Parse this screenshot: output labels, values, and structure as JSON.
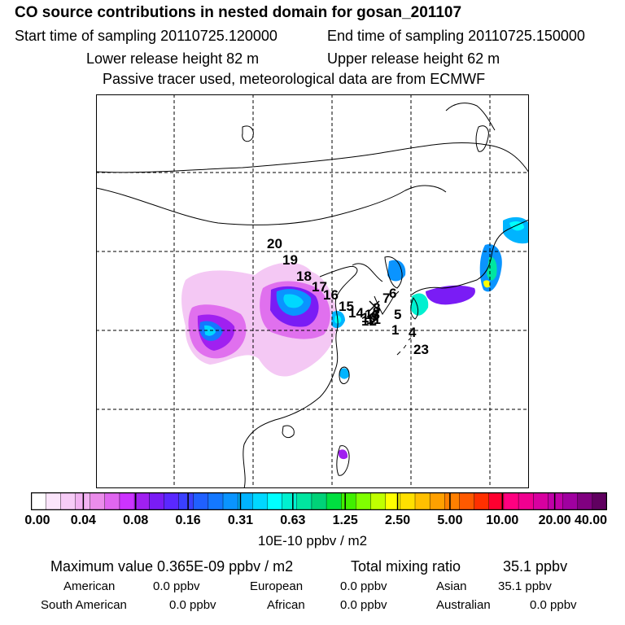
{
  "header": {
    "title": "CO  source contributions in nested domain for gosan_201107",
    "start_time": "Start time of sampling 20110725.120000",
    "end_time": "End time of sampling 20110725.150000",
    "lower_height": "Lower release height   82 m",
    "upper_height": "Upper release height   62 m",
    "tracer_note": "Passive tracer used, meteorological data are from ECMWF"
  },
  "map": {
    "trajectory_labels": [
      "1",
      "23",
      "4",
      "5",
      "6",
      "7",
      "8",
      "9",
      "10",
      "11",
      "12",
      "13",
      "14",
      "15",
      "16",
      "17",
      "18",
      "19",
      "20"
    ]
  },
  "colorbar": {
    "tick_labels": [
      "0.00",
      "0.04",
      "0.08",
      "0.16",
      "0.31",
      "0.63",
      "1.25",
      "2.50",
      "5.00",
      "10.00",
      "20.00",
      "40.00"
    ],
    "units": "10E-10 ppbv / m2",
    "colors": [
      "#ffffff",
      "#fbe5fb",
      "#f7ccf7",
      "#f2b2f2",
      "#eb8ceb",
      "#e066f0",
      "#cc33ff",
      "#a020f0",
      "#7a1cf5",
      "#5a28ff",
      "#3a40ff",
      "#2060ff",
      "#1478ff",
      "#0a94ff",
      "#00b4ff",
      "#00d8ff",
      "#00ffff",
      "#00f0d0",
      "#00e6a0",
      "#00d278",
      "#00e040",
      "#40f000",
      "#80ff00",
      "#c0ff00",
      "#ffff00",
      "#ffe000",
      "#ffc000",
      "#ffa000",
      "#ff8000",
      "#ff5a00",
      "#ff3000",
      "#ff0030",
      "#ff0080",
      "#f00090",
      "#d800a0",
      "#c000a8",
      "#a000a0",
      "#800080",
      "#600060"
    ]
  },
  "summary": {
    "max_label": "Maximum value  0.365E-09 ppbv / m2",
    "total_label": "Total mixing ratio",
    "total_value": "35.1 ppbv",
    "regions": [
      {
        "name": "American",
        "value": "0.0 ppbv"
      },
      {
        "name": "European",
        "value": "0.0 ppbv"
      },
      {
        "name": "Asian",
        "value": "35.1 ppbv"
      },
      {
        "name": "South American",
        "value": "0.0 ppbv"
      },
      {
        "name": "African",
        "value": "0.0 ppbv"
      },
      {
        "name": "Australian",
        "value": "0.0 ppbv"
      }
    ]
  }
}
